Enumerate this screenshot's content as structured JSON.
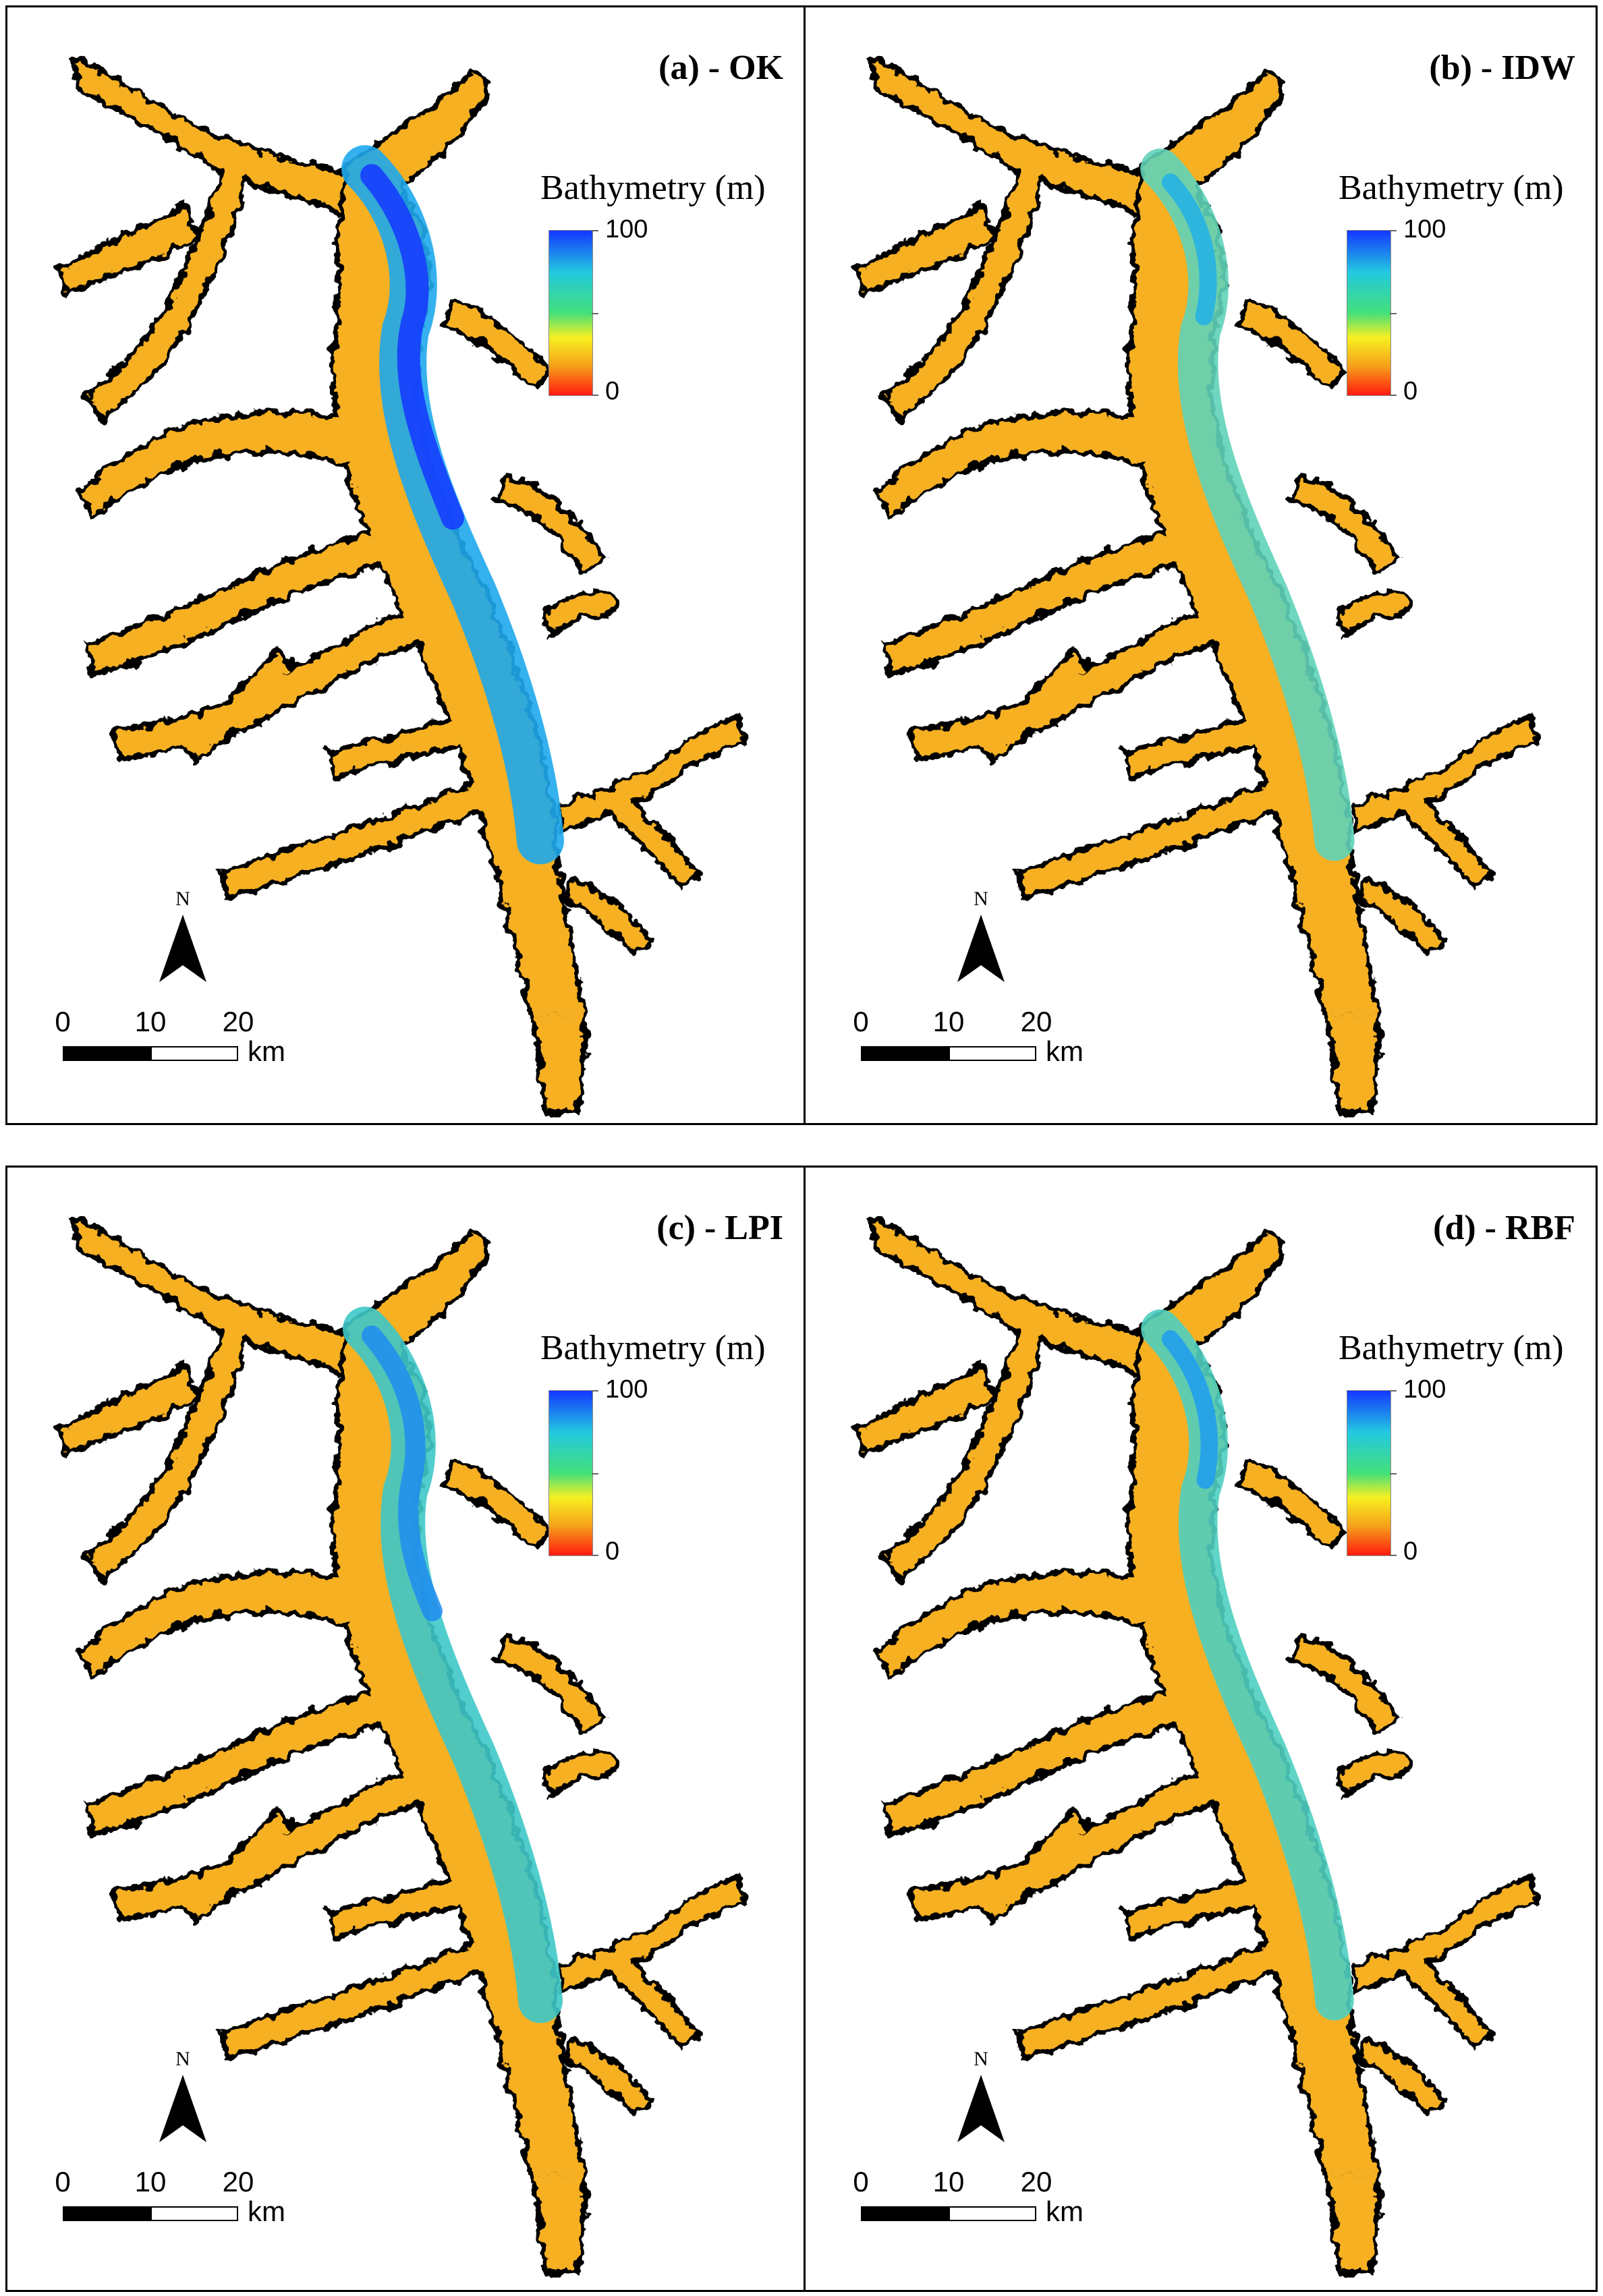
{
  "figure": {
    "legend_title": "Bathymetry (m)",
    "legend_max": "100",
    "legend_min": "0",
    "north_label": "N",
    "scale_labels": [
      "0",
      "10",
      "20"
    ],
    "scale_unit": "km",
    "colors": {
      "deep": "#1437ff",
      "mid_deep": "#22c8e0",
      "mid": "#43e07a",
      "shallow_mid": "#f7f020",
      "shallow": "#f5a21a",
      "zero": "#ff1a10",
      "land_outline": "#000000"
    }
  },
  "panels": [
    {
      "id": "a",
      "title": "(a) - OK",
      "channel_depth": 0.82
    },
    {
      "id": "b",
      "title": "(b) - IDW",
      "channel_depth": 0.62
    },
    {
      "id": "c",
      "title": "(c) - LPI",
      "channel_depth": 0.7
    },
    {
      "id": "d",
      "title": "(d) - RBF",
      "channel_depth": 0.64
    }
  ]
}
